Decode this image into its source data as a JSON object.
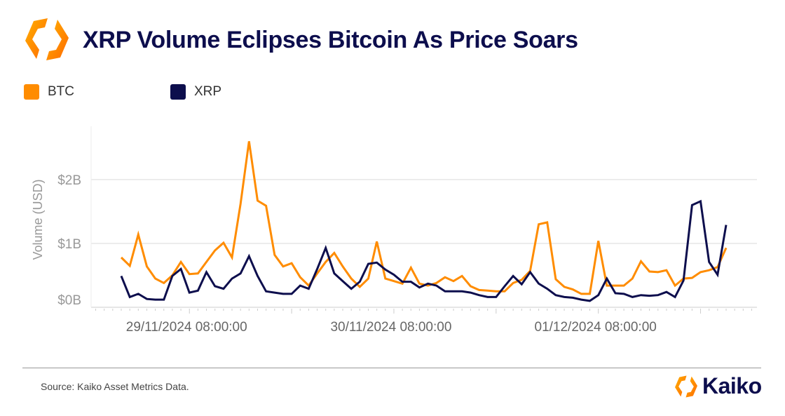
{
  "header": {
    "title": "XRP Volume Eclipses Bitcoin As Price Soars"
  },
  "footer": {
    "source": "Source: Kaiko Asset Metrics Data.",
    "brand": "Kaiko"
  },
  "colors": {
    "btc": "#ff8c00",
    "xrp": "#0d0e4d",
    "grid": "#e6e6e6"
  },
  "chart_data": {
    "type": "line",
    "title": "XRP Volume Eclipses Bitcoin As Price Soars",
    "xlabel": "",
    "ylabel": "Volume (USD)",
    "ylim": [
      0,
      2.6
    ],
    "y_unit": "USD billions (hourly)",
    "y_ticks": [
      {
        "value": 0,
        "label": "$0B"
      },
      {
        "value": 1,
        "label": "$1B"
      },
      {
        "value": 2,
        "label": "$2B"
      }
    ],
    "x_start": "29/11/2024 00:00:00",
    "x_step": "1 hour",
    "x_ticks": [
      {
        "index": 8,
        "label": "29/11/2024 08:00:00"
      },
      {
        "index": 32,
        "label": "30/11/2024 08:00:00"
      },
      {
        "index": 56,
        "label": "01/12/2024 08:00:00"
      }
    ],
    "grid": true,
    "legend_position": "top-left",
    "series": [
      {
        "name": "BTC",
        "color": "#ff8c00",
        "values": [
          0.78,
          0.65,
          1.14,
          0.64,
          0.45,
          0.38,
          0.5,
          0.71,
          0.52,
          0.53,
          0.71,
          0.89,
          1.01,
          0.78,
          1.62,
          2.6,
          1.67,
          1.59,
          0.82,
          0.64,
          0.69,
          0.47,
          0.34,
          0.53,
          0.71,
          0.85,
          0.64,
          0.45,
          0.32,
          0.45,
          1.03,
          0.45,
          0.41,
          0.37,
          0.62,
          0.37,
          0.34,
          0.38,
          0.47,
          0.41,
          0.49,
          0.33,
          0.27,
          0.26,
          0.25,
          0.25,
          0.38,
          0.43,
          0.57,
          1.3,
          1.33,
          0.44,
          0.32,
          0.28,
          0.21,
          0.21,
          1.04,
          0.34,
          0.34,
          0.34,
          0.45,
          0.72,
          0.56,
          0.55,
          0.58,
          0.34,
          0.45,
          0.46,
          0.55,
          0.58,
          0.63,
          0.93
        ]
      },
      {
        "name": "XRP",
        "color": "#0d0e4d",
        "values": [
          0.49,
          0.16,
          0.21,
          0.13,
          0.12,
          0.12,
          0.49,
          0.6,
          0.23,
          0.26,
          0.55,
          0.33,
          0.29,
          0.45,
          0.53,
          0.8,
          0.49,
          0.25,
          0.23,
          0.21,
          0.21,
          0.34,
          0.29,
          0.6,
          0.93,
          0.53,
          0.41,
          0.29,
          0.4,
          0.68,
          0.7,
          0.59,
          0.51,
          0.4,
          0.4,
          0.31,
          0.37,
          0.34,
          0.25,
          0.25,
          0.25,
          0.23,
          0.19,
          0.16,
          0.16,
          0.33,
          0.49,
          0.36,
          0.55,
          0.37,
          0.29,
          0.19,
          0.16,
          0.15,
          0.12,
          0.1,
          0.19,
          0.45,
          0.22,
          0.21,
          0.16,
          0.19,
          0.18,
          0.19,
          0.24,
          0.16,
          0.42,
          1.6,
          1.66,
          0.71,
          0.51,
          1.29
        ]
      }
    ]
  }
}
